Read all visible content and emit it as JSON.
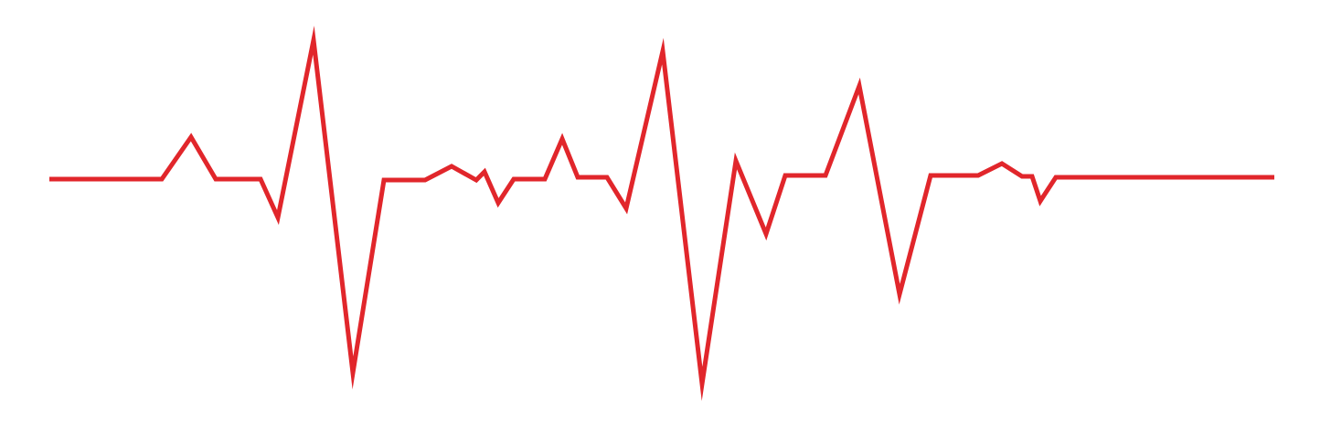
{
  "image": {
    "type": "heartbeat-line",
    "icon": "heartbeat-icon",
    "background_color": "#ffffff",
    "line_color": "#e1262b"
  }
}
